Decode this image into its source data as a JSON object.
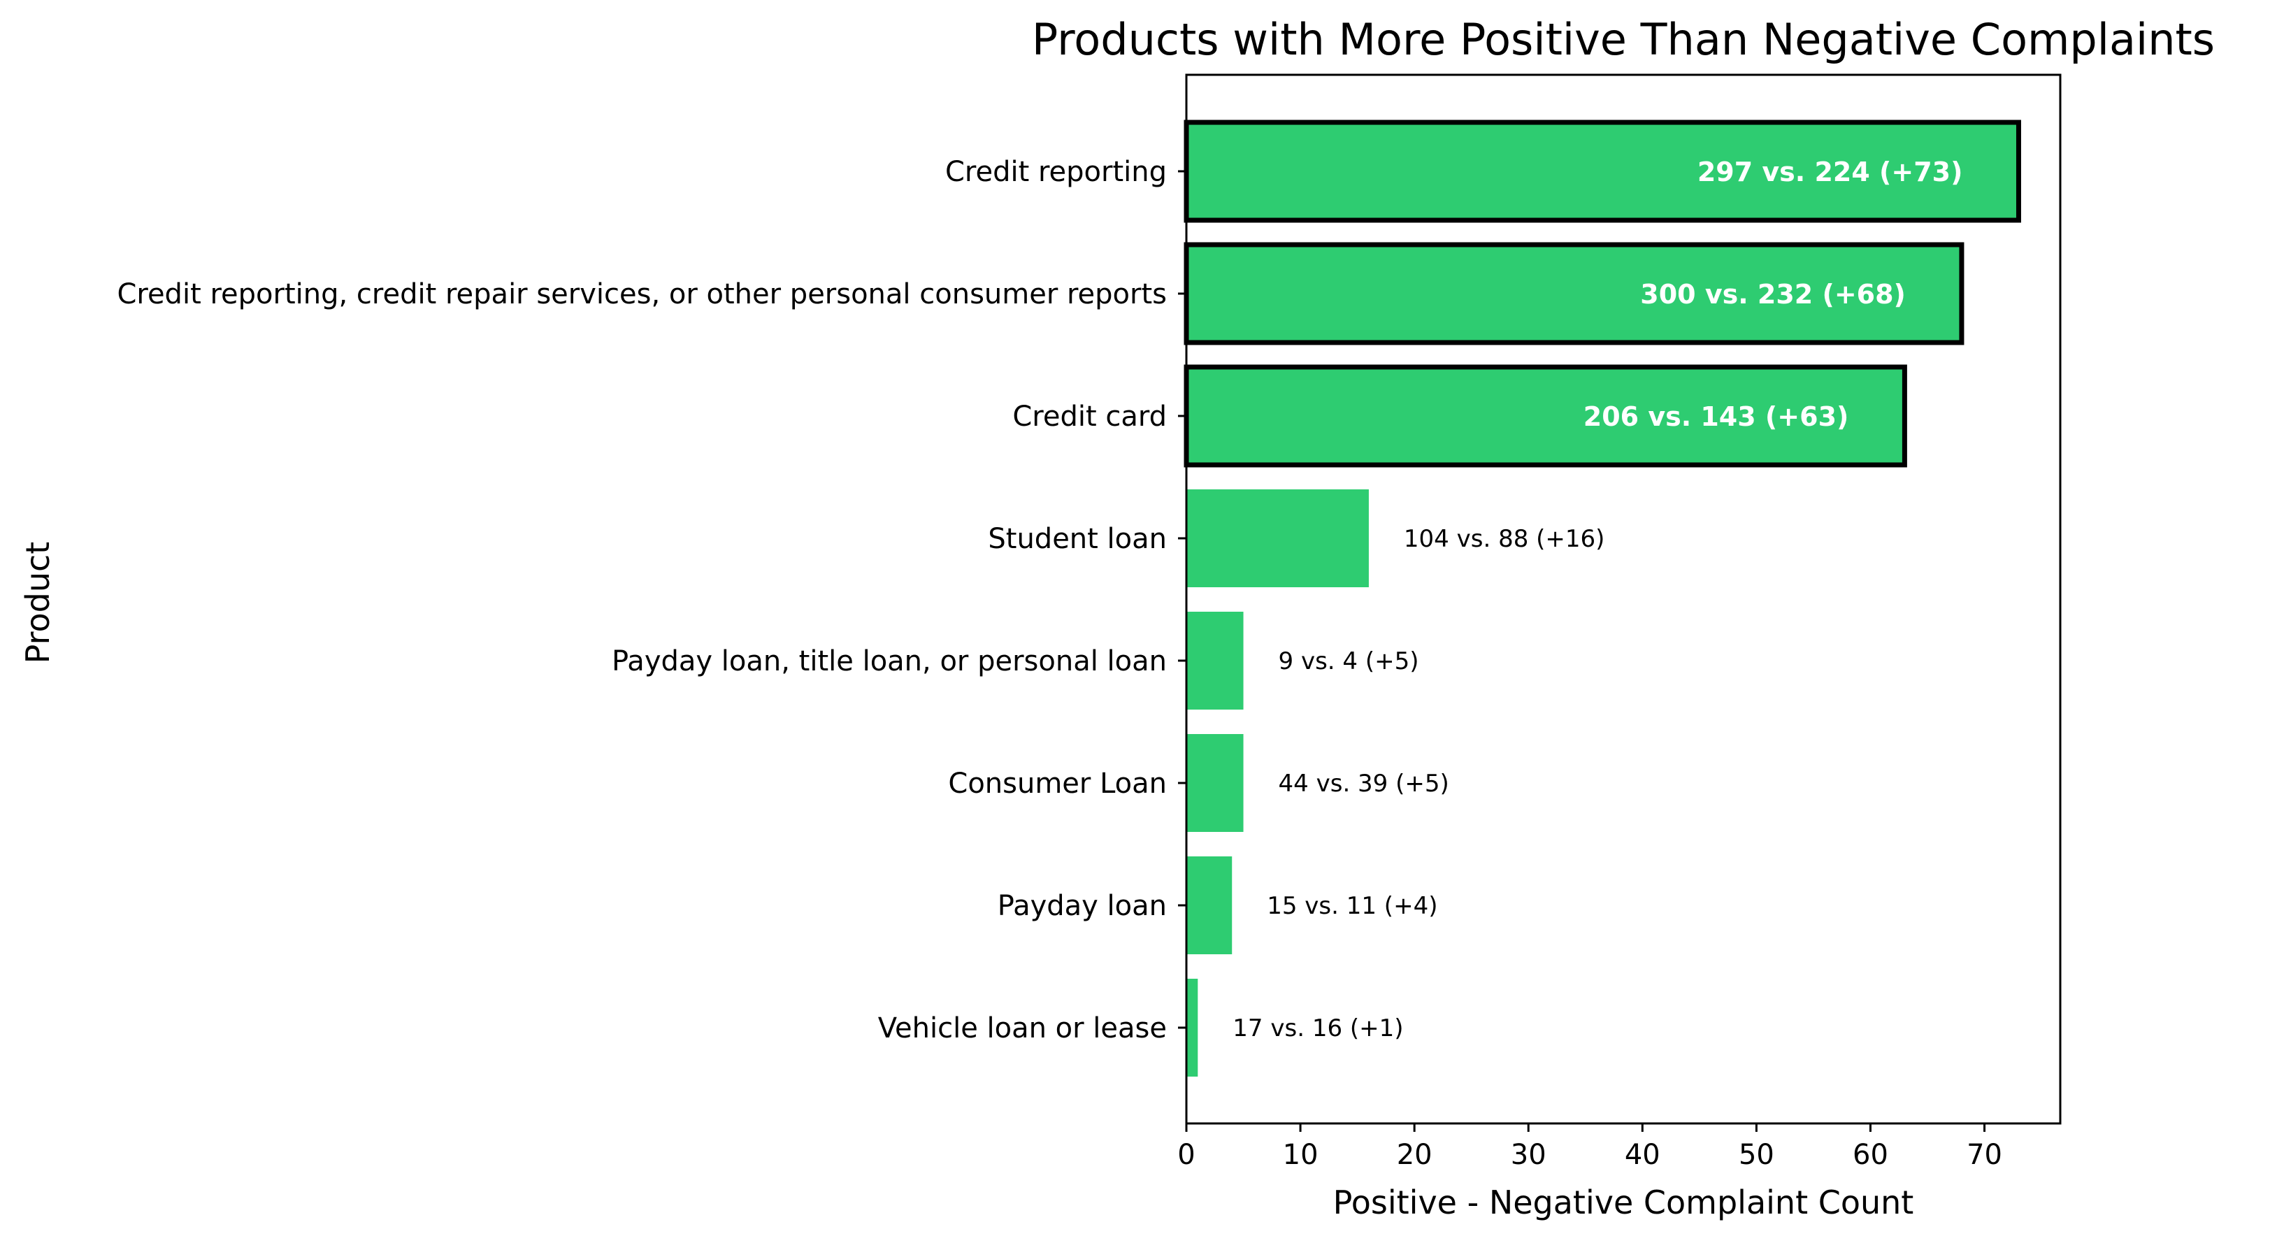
{
  "chart_data": {
    "type": "bar",
    "orientation": "horizontal",
    "title": "Products with More Positive Than Negative Complaints",
    "xlabel": "Positive - Negative Complaint Count",
    "ylabel": "Product",
    "xlim": [
      0,
      76.65
    ],
    "xticks": [
      0,
      10,
      20,
      30,
      40,
      50,
      60,
      70
    ],
    "grid": false,
    "bar_color": "#2ecc71",
    "highlight_edge_color": "#000000",
    "categories": [
      "Credit reporting",
      "Credit reporting, credit repair services, or other personal consumer reports",
      "Credit card",
      "Student loan",
      "Payday loan, title loan, or personal loan",
      "Consumer Loan",
      "Payday loan",
      "Vehicle loan or lease"
    ],
    "values": [
      73,
      68,
      63,
      16,
      5,
      5,
      4,
      1
    ],
    "positive": [
      297,
      300,
      206,
      104,
      9,
      44,
      15,
      17
    ],
    "negative": [
      224,
      232,
      143,
      88,
      4,
      39,
      11,
      16
    ],
    "annotations": [
      "297 vs. 224 (+73)",
      "300 vs. 232 (+68)",
      "206 vs. 143 (+63)",
      "104 vs. 88 (+16)",
      "9 vs. 4 (+5)",
      "44 vs. 39 (+5)",
      "15 vs. 11 (+4)",
      "17 vs. 16 (+1)"
    ],
    "highlighted": [
      true,
      true,
      true,
      false,
      false,
      false,
      false,
      false
    ]
  }
}
